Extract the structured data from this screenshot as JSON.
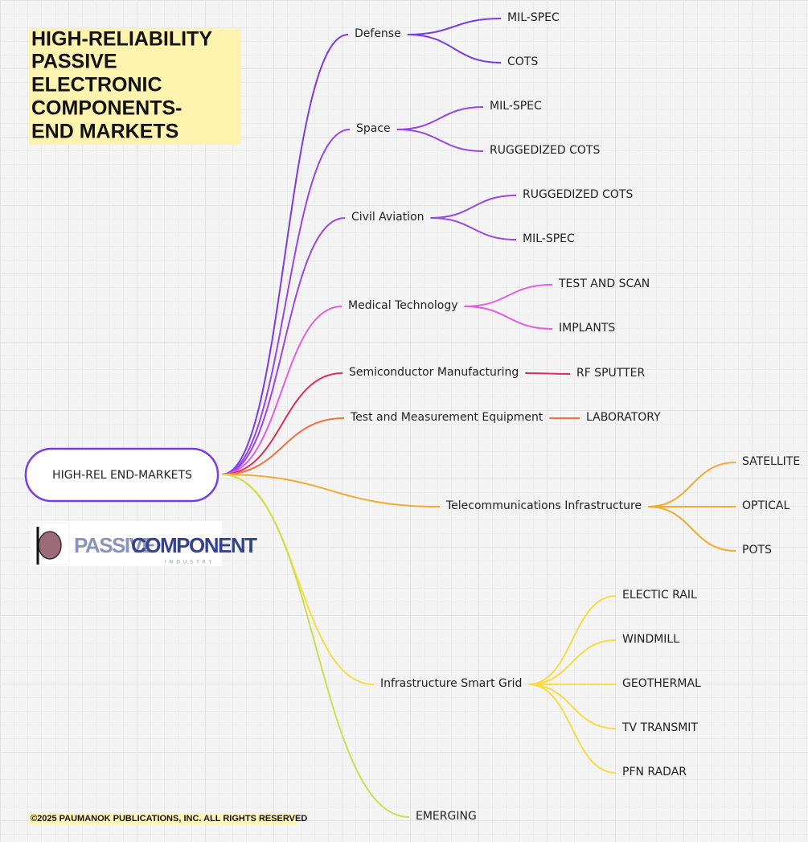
{
  "title": {
    "lines": [
      "HIGH-RELIABILITY",
      "PASSIVE",
      "ELECTRONIC",
      "COMPONENTS-",
      "END MARKETS"
    ]
  },
  "root": {
    "label": "HIGH-REL END-MARKETS"
  },
  "logo": {
    "word_1": "PASSIVE",
    "word_2": "COMPONENT",
    "subtitle": "INDUSTRY"
  },
  "branches": [
    {
      "label": "Defense",
      "color": "#7a3ce6",
      "children": [
        "MIL-SPEC",
        "COTS"
      ]
    },
    {
      "label": "Space",
      "color": "#9647e6",
      "children": [
        "MIL-SPEC",
        "RUGGEDIZED COTS"
      ]
    },
    {
      "label": "Civil Aviation",
      "color": "#9a48e2",
      "children": [
        "RUGGEDIZED COTS",
        "MIL-SPEC"
      ]
    },
    {
      "label": "Medical Technology",
      "color": "#e05fe0",
      "children": [
        "TEST AND SCAN",
        "IMPLANTS"
      ]
    },
    {
      "label": "Semiconductor Manufacturing",
      "color": "#d8305c",
      "children": [
        "RF SPUTTER"
      ]
    },
    {
      "label": "Test and Measurement Equipment",
      "color": "#f07040",
      "children": [
        "LABORATORY"
      ]
    },
    {
      "label": "Telecommunications Infrastructure",
      "color": "#f2aa35",
      "children": [
        "SATELLITE",
        "OPTICAL",
        "POTS"
      ]
    },
    {
      "label": "Infrastructure Smart Grid",
      "color": "#f7dc45",
      "children": [
        "ELECTIC RAIL",
        "WINDMILL",
        "GEOTHERMAL",
        "TV TRANSMIT",
        "PFN RADAR"
      ]
    },
    {
      "label": "EMERGING",
      "color": "#c9e052",
      "children": []
    }
  ],
  "footer": "©2025 PAUMANOK PUBLICATIONS, INC. ALL RIGHTS RESERVED"
}
